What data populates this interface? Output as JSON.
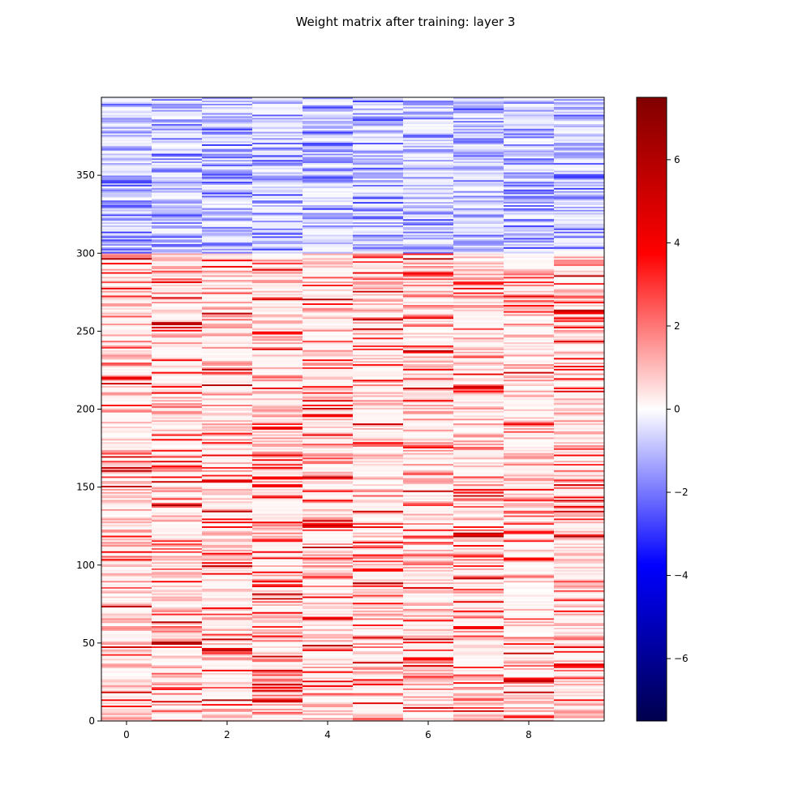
{
  "chart_data": {
    "type": "heatmap",
    "title": "Weight matrix after training: layer 3",
    "xlabel": "",
    "ylabel": "",
    "columns": 10,
    "rows": 400,
    "xlim": [
      -0.5,
      9.5
    ],
    "ylim": [
      0,
      400
    ],
    "x_ticks": [
      0,
      2,
      4,
      6,
      8
    ],
    "y_ticks": [
      0,
      50,
      100,
      150,
      200,
      250,
      300,
      350
    ],
    "colormap": "seismic",
    "color_range": [
      -7.5,
      7.5
    ],
    "colorbar_ticks": [
      -6,
      -4,
      -2,
      0,
      2,
      4,
      6
    ],
    "colorbar_tick_labels": [
      "−6",
      "−4",
      "−2",
      "0",
      "2",
      "4",
      "6"
    ],
    "rows_0_to_299": "non-negative values, mostly 0 to 2 with sparse rows up to about 6",
    "rows_300_to_399": "negative values, mostly 0 to -2.5",
    "grid": false,
    "legend": "colorbar right",
    "colors": {
      "min": "#00004d",
      "mid": "#ffffff",
      "max": "#800000"
    }
  }
}
